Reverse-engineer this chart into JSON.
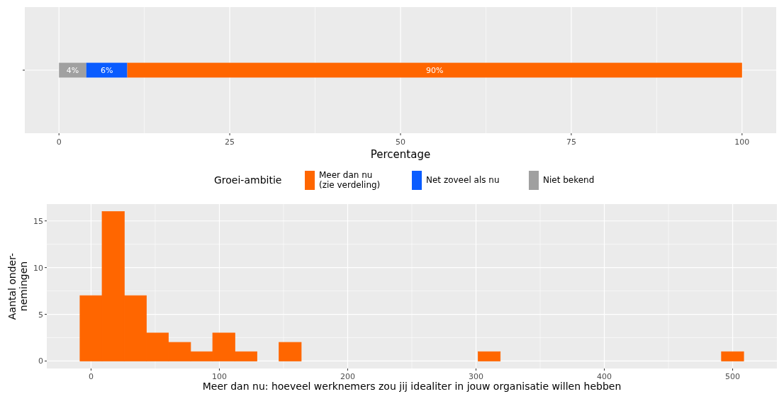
{
  "chart_data": [
    {
      "type": "bar",
      "orientation": "horizontal",
      "stacked": true,
      "categories": [
        null
      ],
      "xlabel": "Percentage",
      "xlim": [
        -5,
        105
      ],
      "xticks": [
        0,
        25,
        50,
        75,
        100
      ],
      "grid": true,
      "legend": "bottom",
      "legend_title": "Groei-ambitie",
      "series": [
        {
          "name": "Niet bekend",
          "color": "#a0a0a0",
          "values": [
            4
          ],
          "value_labels": [
            "4%"
          ]
        },
        {
          "name": "Net zoveel als nu",
          "color": "#0a5cff",
          "values": [
            6
          ],
          "value_labels": [
            "6%"
          ]
        },
        {
          "name": "Meer dan nu\n(zie verdeling)",
          "color": "#ff6600",
          "values": [
            90
          ],
          "value_labels": [
            "90%"
          ]
        }
      ]
    },
    {
      "type": "histogram",
      "xlabel": "Meer dan nu: hoeveel werknemers zou jij idealiter in jouw organisatie willen hebben",
      "ylabel": "Aantal onder-\nnemingen",
      "color": "#ff6600",
      "grid": true,
      "bins": [
        -8.6,
        8.6,
        25.9,
        43.1,
        60.3,
        77.6,
        94.8,
        112.1,
        129.3,
        146.5,
        163.8,
        181.0,
        198.3,
        215.5,
        232.7,
        250.0,
        267.2,
        284.5,
        301.7,
        318.9,
        336.2,
        353.4,
        370.7,
        387.9,
        405.1,
        422.4,
        439.6,
        456.9,
        474.1,
        491.3,
        508.6
      ],
      "values": [
        7,
        16,
        7,
        3,
        2,
        1,
        3,
        1,
        0,
        2,
        0,
        0,
        0,
        0,
        0,
        0,
        0,
        0,
        1,
        0,
        0,
        0,
        0,
        0,
        0,
        0,
        0,
        0,
        0,
        1
      ],
      "xlim": [
        -34.5,
        534.5
      ],
      "xticks": [
        0,
        100,
        200,
        300,
        400,
        500
      ],
      "ylim": [
        -0.8,
        16.8
      ],
      "yticks": [
        0,
        5,
        10,
        15
      ]
    }
  ]
}
